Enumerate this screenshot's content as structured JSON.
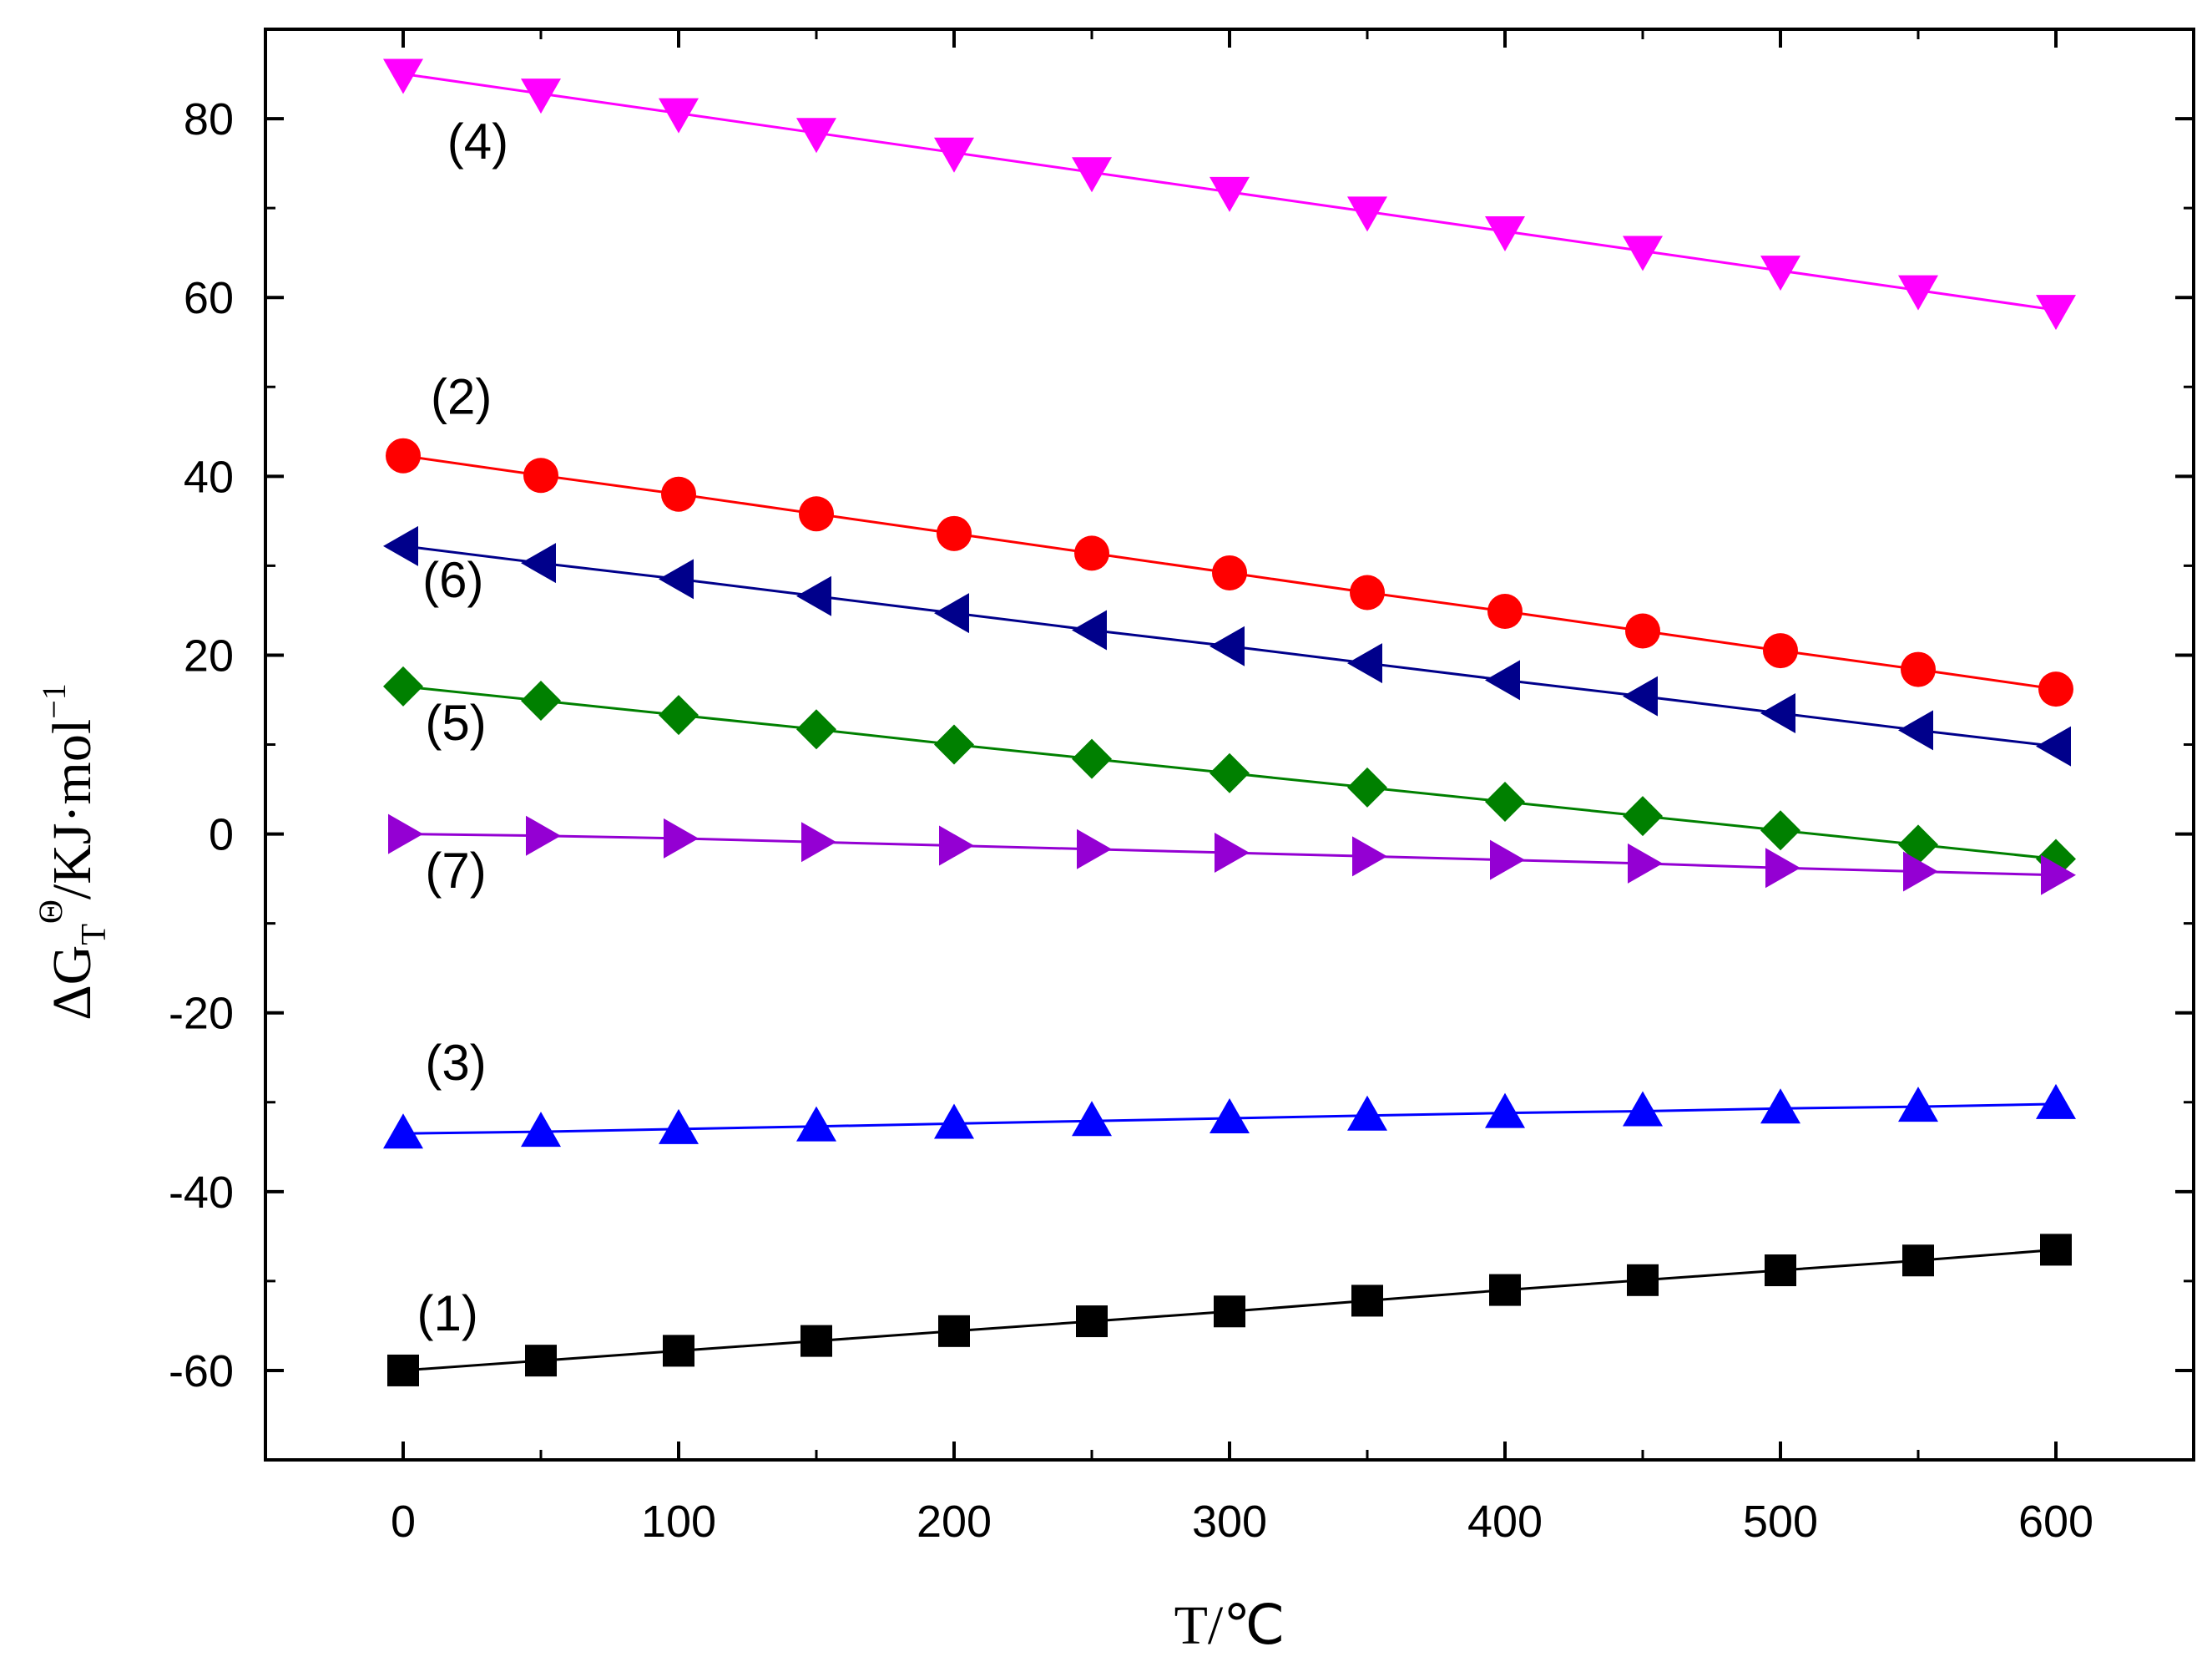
{
  "chart_data": {
    "type": "line",
    "title": "",
    "xlabel": "T/℃",
    "ylabel": {
      "base": "ΔG",
      "subscript": "T",
      "superscript": "Θ",
      "unit": "/KJ·mol",
      "unit_superscript": "−1"
    },
    "xlim": [
      -50,
      650
    ],
    "ylim": [
      -70,
      90
    ],
    "x_ticks": [
      0,
      100,
      200,
      300,
      400,
      500,
      600
    ],
    "x_tick_labels": [
      "0",
      "100",
      "200",
      "300",
      "400",
      "500",
      "600"
    ],
    "y_ticks": [
      -60,
      -40,
      -20,
      0,
      20,
      40,
      60,
      80
    ],
    "y_tick_labels": [
      "-60",
      "-40",
      "-20",
      "0",
      "20",
      "40",
      "60",
      "80"
    ],
    "grid": false,
    "x": [
      0,
      50,
      100,
      150,
      200,
      250,
      300,
      350,
      400,
      450,
      500,
      550,
      600
    ],
    "series": [
      {
        "name": "(1)",
        "color": "#000000",
        "marker": "square",
        "values": [
          -60.0,
          -58.9,
          -57.8,
          -56.7,
          -55.6,
          -54.5,
          -53.4,
          -52.2,
          -51.0,
          -49.9,
          -48.8,
          -47.7,
          -46.5
        ],
        "label": {
          "text": "(1)",
          "x": 5,
          "y": -55.5
        }
      },
      {
        "name": "(2)",
        "color": "#ff0000",
        "marker": "circle",
        "values": [
          42.3,
          40.1,
          38.0,
          35.8,
          33.6,
          31.4,
          29.2,
          27.0,
          24.9,
          22.7,
          20.5,
          18.4,
          16.2
        ],
        "label": {
          "text": "(2)",
          "x": 10,
          "y": 47
        }
      },
      {
        "name": "(3)",
        "color": "#0000ff",
        "marker": "triangle-up",
        "values": [
          -33.5,
          -33.3,
          -33.0,
          -32.7,
          -32.4,
          -32.1,
          -31.8,
          -31.5,
          -31.2,
          -31.0,
          -30.7,
          -30.5,
          -30.2
        ],
        "label": {
          "text": "(3)",
          "x": 8,
          "y": -27.5
        }
      },
      {
        "name": "(4)",
        "color": "#ff00ff",
        "marker": "triangle-down",
        "values": [
          85.0,
          82.8,
          80.6,
          78.4,
          76.2,
          74.0,
          71.8,
          69.6,
          67.4,
          65.2,
          63.0,
          60.8,
          58.6
        ],
        "label": {
          "text": "(4)",
          "x": 16,
          "y": 75.5
        }
      },
      {
        "name": "(5)",
        "color": "#008000",
        "marker": "diamond",
        "values": [
          16.5,
          14.9,
          13.3,
          11.7,
          10.0,
          8.4,
          6.8,
          5.2,
          3.6,
          2.0,
          0.4,
          -1.2,
          -2.8
        ],
        "label": {
          "text": "(5)",
          "x": 8,
          "y": 10.5
        }
      },
      {
        "name": "(6)",
        "color": "#00008b",
        "marker": "triangle-left",
        "values": [
          32.2,
          30.3,
          28.5,
          26.6,
          24.7,
          22.8,
          21.0,
          19.1,
          17.2,
          15.4,
          13.5,
          11.6,
          9.8
        ],
        "label": {
          "text": "(6)",
          "x": 7,
          "y": 26.5
        }
      },
      {
        "name": "(7)",
        "color": "#9400d3",
        "marker": "triangle-right",
        "values": [
          0.0,
          -0.2,
          -0.5,
          -0.9,
          -1.3,
          -1.7,
          -2.1,
          -2.5,
          -2.9,
          -3.3,
          -3.8,
          -4.2,
          -4.6
        ],
        "label": {
          "text": "(7)",
          "x": 8,
          "y": -6
        }
      }
    ]
  }
}
